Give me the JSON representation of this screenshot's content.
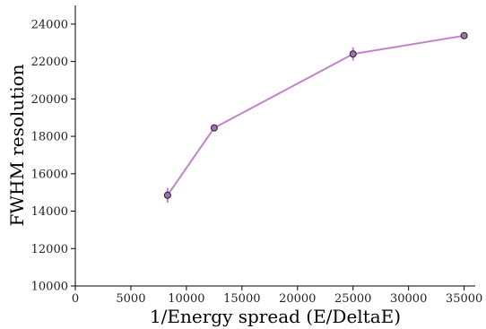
{
  "chart_data": {
    "type": "line",
    "xlabel": "1/Energy spread (E/DeltaE)",
    "ylabel": "FWHM resolution",
    "xlim": [
      0,
      36000
    ],
    "ylim": [
      10000,
      25000
    ],
    "x_ticks": [
      0,
      5000,
      10000,
      15000,
      20000,
      25000,
      30000,
      35000
    ],
    "y_ticks": [
      10000,
      12000,
      14000,
      16000,
      18000,
      20000,
      22000,
      24000
    ],
    "grid": false,
    "series": [
      {
        "color": "#c084c8",
        "marker_color": "#a070b0",
        "x": [
          8300,
          12500,
          25000,
          35000
        ],
        "y": [
          14850,
          18450,
          22400,
          23380
        ],
        "yerr": [
          400,
          100,
          350,
          100
        ]
      }
    ]
  }
}
